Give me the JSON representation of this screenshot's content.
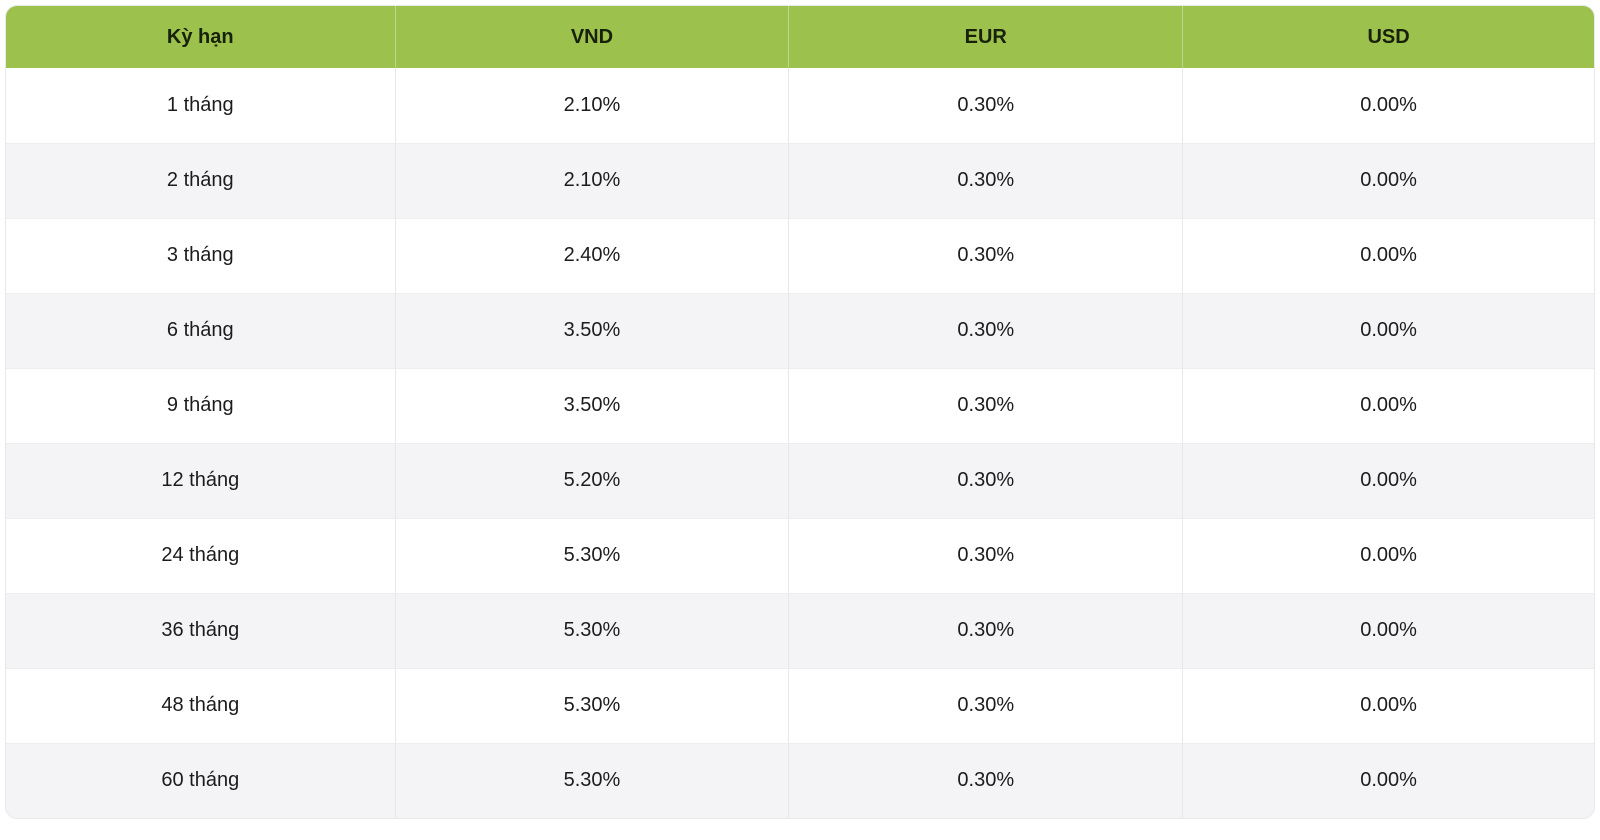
{
  "chart_data": {
    "type": "table",
    "columns": [
      "Kỳ hạn",
      "VND",
      "EUR",
      "USD"
    ],
    "rows": [
      [
        "1 tháng",
        "2.10%",
        "0.30%",
        "0.00%"
      ],
      [
        "2 tháng",
        "2.10%",
        "0.30%",
        "0.00%"
      ],
      [
        "3 tháng",
        "2.40%",
        "0.30%",
        "0.00%"
      ],
      [
        "6 tháng",
        "3.50%",
        "0.30%",
        "0.00%"
      ],
      [
        "9 tháng",
        "3.50%",
        "0.30%",
        "0.00%"
      ],
      [
        "12 tháng",
        "5.20%",
        "0.30%",
        "0.00%"
      ],
      [
        "24 tháng",
        "5.30%",
        "0.30%",
        "0.00%"
      ],
      [
        "36 tháng",
        "5.30%",
        "0.30%",
        "0.00%"
      ],
      [
        "48 tháng",
        "5.30%",
        "0.30%",
        "0.00%"
      ],
      [
        "60 tháng",
        "5.30%",
        "0.30%",
        "0.00%"
      ]
    ]
  },
  "colors": {
    "header_bg": "#9dc14d",
    "row_alt_bg": "#f4f4f7",
    "border": "#e8e8eb"
  }
}
